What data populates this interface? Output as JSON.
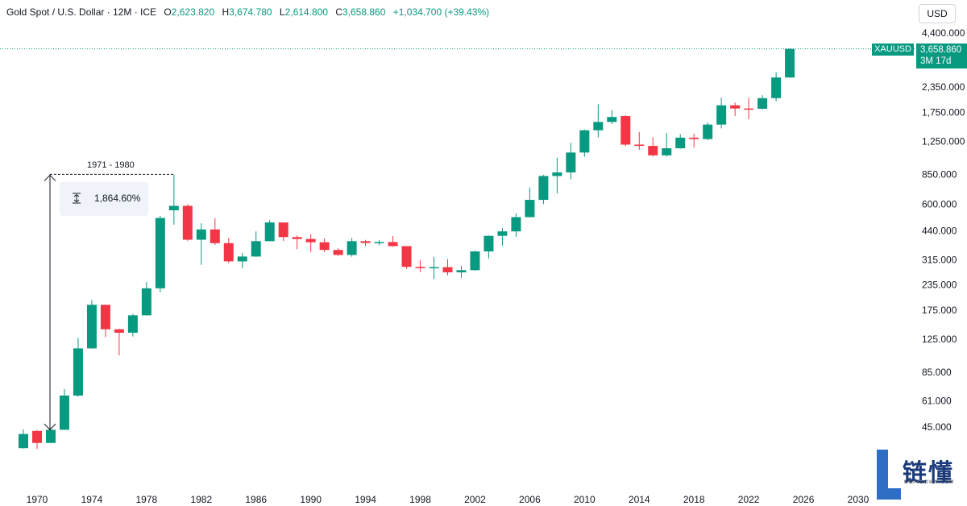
{
  "header": {
    "symbol": "Gold Spot / U.S. Dollar · 12M · ICE",
    "o_label": "O",
    "o_value": "2,623.820",
    "h_label": "H",
    "h_value": "3,674.780",
    "l_label": "L",
    "l_value": "2,614.800",
    "c_label": "C",
    "c_value": "3,658.860",
    "change": "+1,034.700 (+39.43%)"
  },
  "currency_button": "USD",
  "price_tag": {
    "symbol": "XAUUSD",
    "price": "3,658.860",
    "countdown": "3M 17d"
  },
  "measurement": {
    "range_label": "1971 - 1980",
    "percent": "1,864.60%"
  },
  "logo": {
    "text_cn": "链懂",
    "text_en": "NEATDOWN.COM"
  },
  "colors": {
    "up": "#089981",
    "down": "#f23645",
    "grid_line": "#2962ff"
  },
  "chart_data": {
    "type": "candlestick",
    "title": "Gold Spot / U.S. Dollar",
    "interval": "12M",
    "y_scale": "log",
    "y_ticks": [
      "4,400.000",
      "2,350.000",
      "1,750.000",
      "1,250.000",
      "850.000",
      "600.000",
      "440.000",
      "315.000",
      "235.000",
      "175.000",
      "125.000",
      "85.000",
      "61.000",
      "45.000"
    ],
    "x_ticks": [
      "1970",
      "1974",
      "1978",
      "1982",
      "1986",
      "1990",
      "1994",
      "1998",
      "2002",
      "2006",
      "2010",
      "2014",
      "2018",
      "2022",
      "2026",
      "2030"
    ],
    "last_price": 3658.86,
    "candles": [
      {
        "year": 1969,
        "o": 35.2,
        "h": 43.8,
        "l": 35.0,
        "c": 41.5
      },
      {
        "year": 1970,
        "o": 43.0,
        "h": 43.5,
        "l": 34.9,
        "c": 37.4
      },
      {
        "year": 1971,
        "o": 37.4,
        "h": 43.8,
        "l": 37.3,
        "c": 43.6
      },
      {
        "year": 1972,
        "o": 43.6,
        "h": 70.0,
        "l": 43.5,
        "c": 64.9
      },
      {
        "year": 1973,
        "o": 64.9,
        "h": 127.0,
        "l": 64.0,
        "c": 112.3
      },
      {
        "year": 1974,
        "o": 112.3,
        "h": 197.0,
        "l": 112.0,
        "c": 186.5
      },
      {
        "year": 1975,
        "o": 186.5,
        "h": 186.0,
        "l": 128.0,
        "c": 140.3
      },
      {
        "year": 1976,
        "o": 140.3,
        "h": 141.0,
        "l": 103.5,
        "c": 134.8
      },
      {
        "year": 1977,
        "o": 134.8,
        "h": 168.0,
        "l": 129.0,
        "c": 165.0
      },
      {
        "year": 1978,
        "o": 165.0,
        "h": 243.0,
        "l": 165.0,
        "c": 226.0
      },
      {
        "year": 1979,
        "o": 226.0,
        "h": 524.0,
        "l": 216.0,
        "c": 512.0
      },
      {
        "year": 1980,
        "o": 560.0,
        "h": 850.0,
        "l": 474.0,
        "c": 589.5
      },
      {
        "year": 1981,
        "o": 589.5,
        "h": 599.0,
        "l": 391.0,
        "c": 397.5
      },
      {
        "year": 1982,
        "o": 397.5,
        "h": 481.0,
        "l": 297.0,
        "c": 448.0
      },
      {
        "year": 1983,
        "o": 448.0,
        "h": 511.0,
        "l": 374.0,
        "c": 382.0
      },
      {
        "year": 1984,
        "o": 382.0,
        "h": 406.0,
        "l": 303.0,
        "c": 309.0
      },
      {
        "year": 1985,
        "o": 309.0,
        "h": 341.0,
        "l": 285.0,
        "c": 327.0
      },
      {
        "year": 1986,
        "o": 327.0,
        "h": 438.0,
        "l": 326.0,
        "c": 391.0
      },
      {
        "year": 1987,
        "o": 391.0,
        "h": 500.0,
        "l": 390.0,
        "c": 486.0
      },
      {
        "year": 1988,
        "o": 486.0,
        "h": 485.0,
        "l": 392.0,
        "c": 410.0
      },
      {
        "year": 1989,
        "o": 410.0,
        "h": 418.0,
        "l": 356.0,
        "c": 401.0
      },
      {
        "year": 1990,
        "o": 401.0,
        "h": 423.0,
        "l": 345.0,
        "c": 386.0
      },
      {
        "year": 1991,
        "o": 386.0,
        "h": 403.0,
        "l": 344.0,
        "c": 353.0
      },
      {
        "year": 1992,
        "o": 353.0,
        "h": 360.0,
        "l": 330.0,
        "c": 333.0
      },
      {
        "year": 1993,
        "o": 333.0,
        "h": 406.0,
        "l": 326.0,
        "c": 391.0
      },
      {
        "year": 1994,
        "o": 391.0,
        "h": 397.0,
        "l": 370.0,
        "c": 383.0
      },
      {
        "year": 1995,
        "o": 383.0,
        "h": 396.0,
        "l": 372.0,
        "c": 387.0
      },
      {
        "year": 1996,
        "o": 387.0,
        "h": 415.0,
        "l": 367.0,
        "c": 369.0
      },
      {
        "year": 1997,
        "o": 369.0,
        "h": 367.0,
        "l": 283.0,
        "c": 290.0
      },
      {
        "year": 1998,
        "o": 290.0,
        "h": 313.0,
        "l": 273.0,
        "c": 288.0
      },
      {
        "year": 1999,
        "o": 288.0,
        "h": 326.0,
        "l": 252.0,
        "c": 289.0
      },
      {
        "year": 2000,
        "o": 289.0,
        "h": 317.0,
        "l": 263.0,
        "c": 272.0
      },
      {
        "year": 2001,
        "o": 272.0,
        "h": 294.0,
        "l": 255.0,
        "c": 279.0
      },
      {
        "year": 2002,
        "o": 279.0,
        "h": 350.0,
        "l": 277.0,
        "c": 347.0
      },
      {
        "year": 2003,
        "o": 347.0,
        "h": 417.0,
        "l": 320.0,
        "c": 416.0
      },
      {
        "year": 2004,
        "o": 416.0,
        "h": 455.0,
        "l": 371.0,
        "c": 438.0
      },
      {
        "year": 2005,
        "o": 438.0,
        "h": 540.0,
        "l": 411.0,
        "c": 517.0
      },
      {
        "year": 2006,
        "o": 517.0,
        "h": 730.0,
        "l": 516.0,
        "c": 632.0
      },
      {
        "year": 2007,
        "o": 632.0,
        "h": 845.0,
        "l": 602.0,
        "c": 834.0
      },
      {
        "year": 2008,
        "o": 834.0,
        "h": 1032.0,
        "l": 681.0,
        "c": 870.0
      },
      {
        "year": 2009,
        "o": 870.0,
        "h": 1227.0,
        "l": 802.0,
        "c": 1096.0
      },
      {
        "year": 2010,
        "o": 1096.0,
        "h": 1431.0,
        "l": 1044.0,
        "c": 1420.0
      },
      {
        "year": 2011,
        "o": 1420.0,
        "h": 1921.0,
        "l": 1308.0,
        "c": 1564.0
      },
      {
        "year": 2012,
        "o": 1564.0,
        "h": 1796.0,
        "l": 1527.0,
        "c": 1657.0
      },
      {
        "year": 2013,
        "o": 1675.0,
        "h": 1694.0,
        "l": 1180.0,
        "c": 1202.0
      },
      {
        "year": 2014,
        "o": 1202.0,
        "h": 1392.0,
        "l": 1131.0,
        "c": 1184.0
      },
      {
        "year": 2015,
        "o": 1184.0,
        "h": 1308.0,
        "l": 1046.0,
        "c": 1061.0
      },
      {
        "year": 2016,
        "o": 1061.0,
        "h": 1375.0,
        "l": 1046.0,
        "c": 1152.0
      },
      {
        "year": 2017,
        "o": 1152.0,
        "h": 1357.0,
        "l": 1146.0,
        "c": 1303.0
      },
      {
        "year": 2018,
        "o": 1303.0,
        "h": 1366.0,
        "l": 1160.0,
        "c": 1282.0
      },
      {
        "year": 2019,
        "o": 1282.0,
        "h": 1557.0,
        "l": 1266.0,
        "c": 1517.0
      },
      {
        "year": 2020,
        "o": 1517.0,
        "h": 2075.0,
        "l": 1451.0,
        "c": 1898.0
      },
      {
        "year": 2021,
        "o": 1898.0,
        "h": 1959.0,
        "l": 1677.0,
        "c": 1829.0
      },
      {
        "year": 2022,
        "o": 1829.0,
        "h": 2070.0,
        "l": 1615.0,
        "c": 1824.0
      },
      {
        "year": 2023,
        "o": 1824.0,
        "h": 2135.0,
        "l": 1805.0,
        "c": 2063.0
      },
      {
        "year": 2024,
        "o": 2063.0,
        "h": 2790.0,
        "l": 1985.0,
        "c": 2624.0
      },
      {
        "year": 2025,
        "o": 2623.82,
        "h": 3674.78,
        "l": 2614.8,
        "c": 3658.86
      }
    ]
  }
}
